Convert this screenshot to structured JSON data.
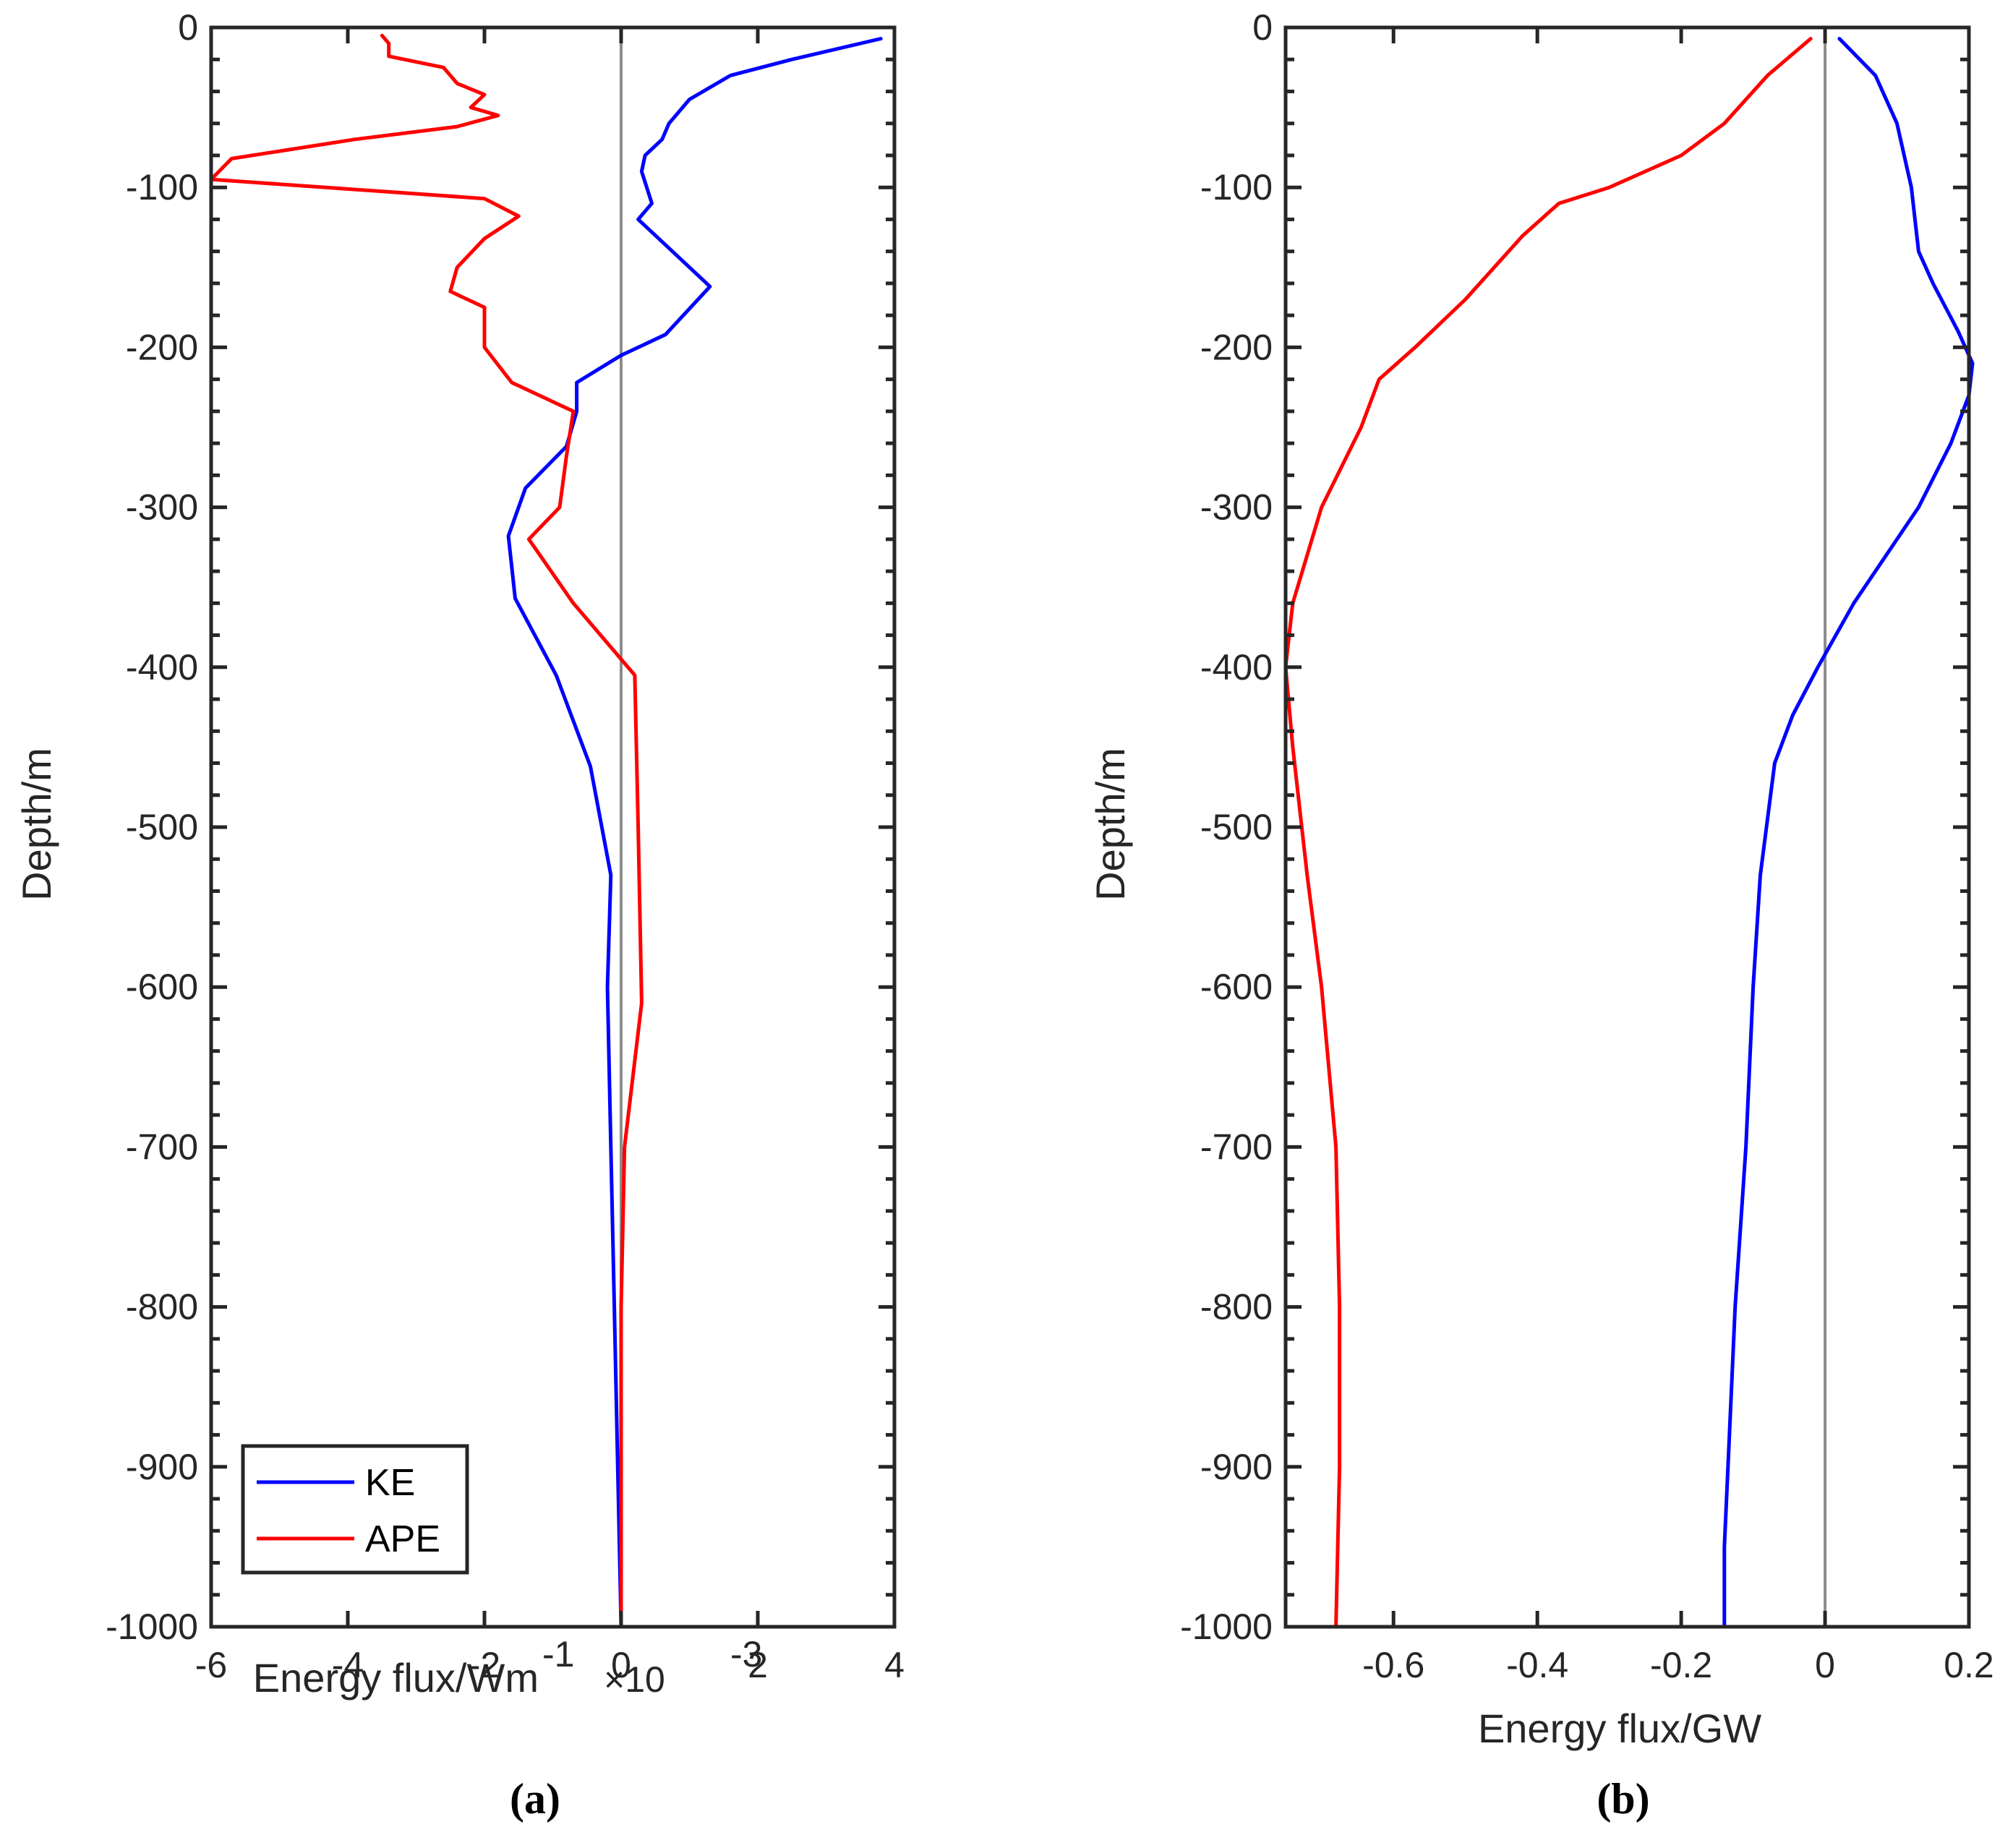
{
  "chart_data": [
    {
      "type": "line",
      "panel_label": "(a)",
      "ylabel": "Depth/m",
      "xlabel": "Energy flux/Wm",
      "xlabel_superscript": "-1",
      "multiplier": "×10",
      "multiplier_exponent": "-3",
      "xlim": [
        -6,
        4
      ],
      "ylim": [
        -1000,
        0
      ],
      "xticks": [
        -6,
        -4,
        -2,
        0,
        2,
        4
      ],
      "xtick_labels": [
        "-6",
        "-4",
        "-2",
        "0",
        "2",
        "4"
      ],
      "yticks": [
        0,
        -100,
        -200,
        -300,
        -400,
        -500,
        -600,
        -700,
        -800,
        -900,
        -1000
      ],
      "ytick_labels": [
        "0",
        "-100",
        "-200",
        "-300",
        "-400",
        "-500",
        "-600",
        "-700",
        "-800",
        "-900",
        "-1000"
      ],
      "zero_line": true,
      "legend": {
        "position": "bottom-left",
        "entries": [
          "KE",
          "APE"
        ]
      },
      "series": [
        {
          "name": "KE",
          "color": "#0000ff",
          "x": [
            3.8,
            2.5,
            1.6,
            1.0,
            0.7,
            0.6,
            0.35,
            0.3,
            0.45,
            0.25,
            1.3,
            0.65,
            0.0,
            -0.65,
            -0.65,
            -0.8,
            -1.4,
            -1.65,
            -1.55,
            -0.95,
            -0.45,
            -0.15,
            -0.2,
            -0.15,
            -0.1,
            -0.05,
            0.0
          ],
          "y": [
            -7,
            -20,
            -30,
            -45,
            -60,
            -70,
            -80,
            -90,
            -110,
            -120,
            -162,
            -192,
            -205,
            -222,
            -240,
            -262,
            -288,
            -318,
            -357,
            -405,
            -462,
            -530,
            -600,
            -700,
            -800,
            -900,
            -1000
          ]
        },
        {
          "name": "APE",
          "color": "#ff0000",
          "x": [
            -3.5,
            -3.4,
            -3.4,
            -2.6,
            -2.4,
            -2.0,
            -2.2,
            -1.8,
            -2.4,
            -3.9,
            -5.7,
            -6.0,
            -2.0,
            -1.5,
            -2.0,
            -2.4,
            -2.5,
            -2.0,
            -2.0,
            -1.6,
            -0.7,
            -0.8,
            -0.9,
            -1.35,
            -0.7,
            0.2,
            0.25,
            0.3,
            0.05,
            0.0,
            0.0
          ],
          "y": [
            -5,
            -10,
            -18,
            -25,
            -35,
            -42,
            -50,
            -55,
            -62,
            -70,
            -82,
            -95,
            -107,
            -118,
            -132,
            -150,
            -165,
            -175,
            -200,
            -222,
            -240,
            -268,
            -300,
            -320,
            -360,
            -405,
            -500,
            -610,
            -700,
            -800,
            -1000
          ]
        }
      ]
    },
    {
      "type": "line",
      "panel_label": "(b)",
      "ylabel": "Depth/m",
      "xlabel": "Energy flux/GW",
      "xlim": [
        -0.75,
        0.2
      ],
      "ylim": [
        -1000,
        0
      ],
      "xticks": [
        -0.6,
        -0.4,
        -0.2,
        0,
        0.2
      ],
      "xtick_labels": [
        "-0.6",
        "-0.4",
        "-0.2",
        "0",
        "0.2"
      ],
      "yticks": [
        0,
        -100,
        -200,
        -300,
        -400,
        -500,
        -600,
        -700,
        -800,
        -900,
        -1000
      ],
      "ytick_labels": [
        "0",
        "-100",
        "-200",
        "-300",
        "-400",
        "-500",
        "-600",
        "-700",
        "-800",
        "-900",
        "-1000"
      ],
      "zero_line": true,
      "series": [
        {
          "name": "KE",
          "color": "#0000ff",
          "x": [
            0.02,
            0.07,
            0.1,
            0.12,
            0.13,
            0.15,
            0.185,
            0.205,
            0.2,
            0.175,
            0.13,
            0.04,
            -0.01,
            -0.045,
            -0.07,
            -0.09,
            -0.1,
            -0.11,
            -0.125,
            -0.135,
            -0.14,
            -0.14
          ],
          "y": [
            -7,
            -30,
            -60,
            -100,
            -140,
            -160,
            -190,
            -210,
            -230,
            -260,
            -300,
            -360,
            -400,
            -430,
            -460,
            -530,
            -600,
            -700,
            -800,
            -900,
            -950,
            -1000
          ]
        },
        {
          "name": "APE",
          "color": "#ff0000",
          "x": [
            -0.02,
            -0.08,
            -0.14,
            -0.2,
            -0.3,
            -0.37,
            -0.42,
            -0.5,
            -0.57,
            -0.62,
            -0.645,
            -0.7,
            -0.74,
            -0.75,
            -0.74,
            -0.72,
            -0.7,
            -0.68,
            -0.675,
            -0.675,
            -0.68
          ],
          "y": [
            -7,
            -30,
            -60,
            -80,
            -100,
            -110,
            -130,
            -170,
            -200,
            -220,
            -250,
            -300,
            -360,
            -400,
            -450,
            -530,
            -600,
            -700,
            -800,
            -900,
            -1000
          ]
        }
      ]
    }
  ]
}
